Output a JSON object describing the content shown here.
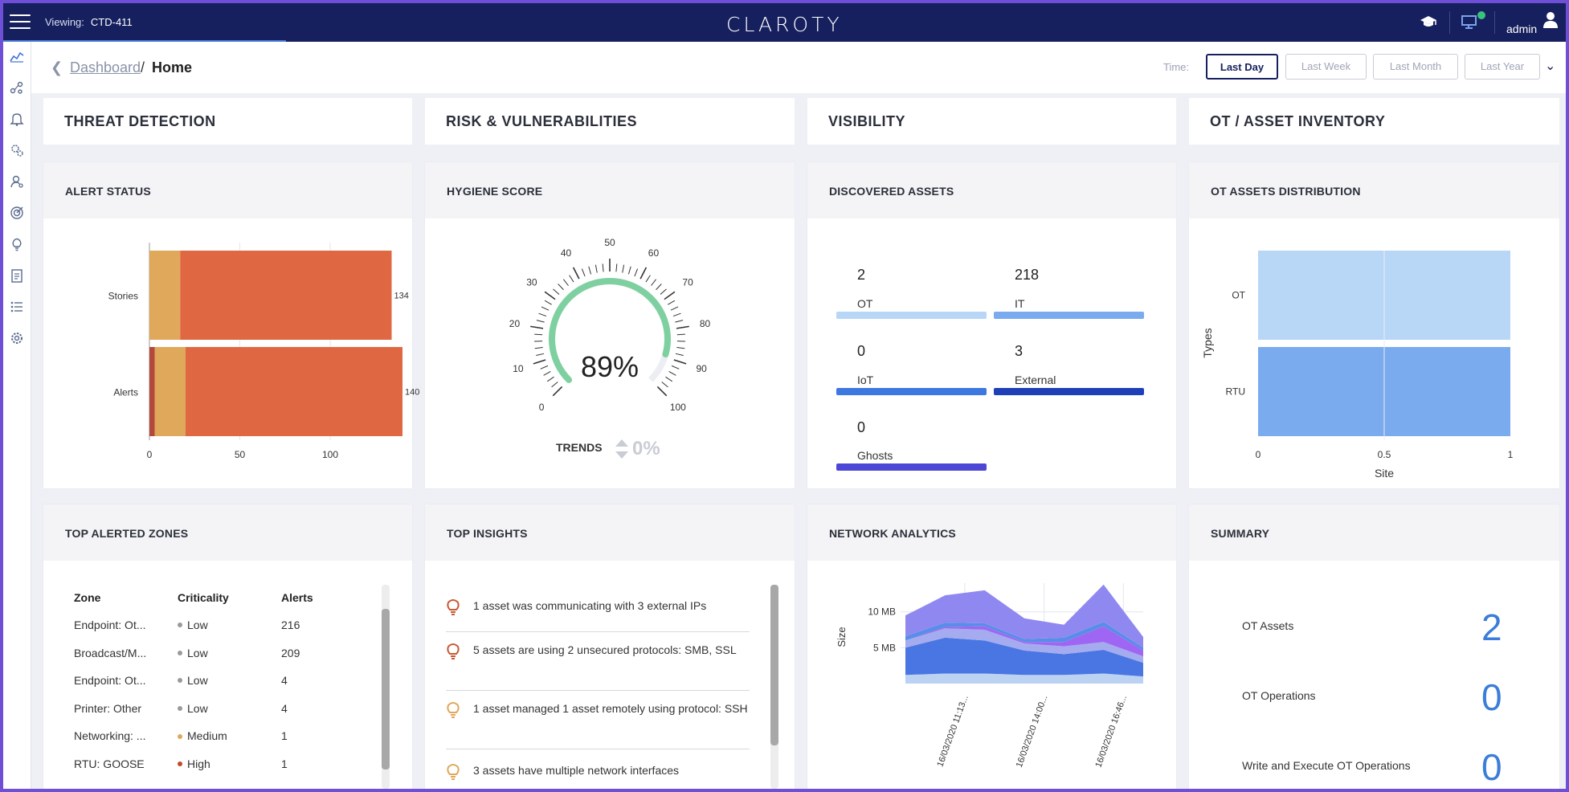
{
  "topbar": {
    "viewing_label": "Viewing:",
    "viewing_value": "CTD-411",
    "logo": "CLAROTY",
    "user": "admin"
  },
  "breadcrumb": {
    "parent": "Dashboard",
    "separator": "/",
    "current": "Home"
  },
  "time": {
    "label": "Time:",
    "options": [
      "Last Day",
      "Last Week",
      "Last Month",
      "Last Year"
    ],
    "selected": "Last Day"
  },
  "sections": [
    "THREAT DETECTION",
    "RISK & VULNERABILITIES",
    "VISIBILITY",
    "OT / ASSET INVENTORY"
  ],
  "alert_status": {
    "title": "ALERT STATUS",
    "chart_data": {
      "type": "bar",
      "orientation": "horizontal",
      "stacked": true,
      "categories": [
        "Stories",
        "Alerts"
      ],
      "series": [
        {
          "name": "segment-1",
          "color": "#b3493a",
          "values": [
            0,
            3
          ]
        },
        {
          "name": "segment-2",
          "color": "#e0a85a",
          "values": [
            17,
            17
          ]
        },
        {
          "name": "segment-3",
          "color": "#df6843",
          "values": [
            117,
            120
          ]
        }
      ],
      "totals": [
        134,
        140
      ],
      "xlim": [
        0,
        140
      ],
      "xticks": [
        0,
        50,
        100
      ]
    }
  },
  "hygiene": {
    "title": "HYGIENE SCORE",
    "value": 89,
    "value_label": "89%",
    "ticks": [
      "0",
      "10",
      "20",
      "30",
      "40",
      "50",
      "60",
      "70",
      "80",
      "90",
      "100"
    ],
    "trends_label": "TRENDS",
    "trend_value": "0%",
    "arc_color": "#7fd0a1"
  },
  "discovered": {
    "title": "DISCOVERED ASSETS",
    "items": [
      {
        "count": "2",
        "label": "OT",
        "color": "#b8d6f6"
      },
      {
        "count": "218",
        "label": "IT",
        "color": "#7aabee"
      },
      {
        "count": "0",
        "label": "IoT",
        "color": "#3d78e0"
      },
      {
        "count": "3",
        "label": "External",
        "color": "#1f3fb9"
      },
      {
        "count": "0",
        "label": "Ghosts",
        "color": "#4d47d8"
      }
    ]
  },
  "ot_dist": {
    "title": "OT ASSETS DISTRIBUTION",
    "chart_data": {
      "type": "bar",
      "orientation": "horizontal",
      "categories": [
        "OT",
        "RTU"
      ],
      "values": [
        1,
        1
      ],
      "colors": [
        "#b8d6f6",
        "#7aabee"
      ],
      "xlabel": "Site",
      "ylabel": "Types",
      "xlim": [
        0,
        1
      ],
      "xticks": [
        "0",
        "0.5",
        "1"
      ]
    }
  },
  "zones": {
    "title": "TOP ALERTED ZONES",
    "columns": [
      "Zone",
      "Criticality",
      "Alerts"
    ],
    "rows": [
      {
        "zone": "Endpoint: Ot...",
        "crit": "Low",
        "alerts": "216",
        "dot": "#9a9a9a"
      },
      {
        "zone": "Broadcast/M...",
        "crit": "Low",
        "alerts": "209",
        "dot": "#9a9a9a"
      },
      {
        "zone": "Endpoint: Ot...",
        "crit": "Low",
        "alerts": "4",
        "dot": "#9a9a9a"
      },
      {
        "zone": "Printer: Other",
        "crit": "Low",
        "alerts": "4",
        "dot": "#9a9a9a"
      },
      {
        "zone": "Networking: ...",
        "crit": "Medium",
        "alerts": "1",
        "dot": "#e0a85a"
      },
      {
        "zone": "RTU: GOOSE",
        "crit": "High",
        "alerts": "1",
        "dot": "#c24a2c"
      }
    ]
  },
  "insights": {
    "title": "TOP INSIGHTS",
    "items": [
      {
        "text": "1 asset was communicating with 3 external IPs",
        "color": "#c75a36"
      },
      {
        "text": "5 assets are using 2 unsecured protocols: SMB, SSL",
        "color": "#c75a36"
      },
      {
        "text": "1 asset managed 1 asset remotely using protocol: SSH",
        "color": "#e0a85a"
      },
      {
        "text": "3 assets have multiple network interfaces",
        "color": "#e0a85a"
      }
    ]
  },
  "network": {
    "title": "NETWORK ANALYTICS",
    "chart_data": {
      "type": "area",
      "stacked": true,
      "ylabel": "Size",
      "yticks": [
        "5 MB",
        "10 MB"
      ],
      "ylim": [
        0,
        14
      ],
      "x_labels": [
        "16/03/2020 11:13...",
        "16/03/2020 14:00...",
        "16/03/2020 16:46..."
      ],
      "x": [
        0,
        1,
        2,
        3,
        4,
        5,
        6
      ],
      "series": [
        {
          "name": "s1",
          "color": "#b8d0f2",
          "values": [
            1.2,
            1.4,
            1.4,
            1.2,
            1.2,
            1.4,
            1.0
          ]
        },
        {
          "name": "s2",
          "color": "#3f6fe0",
          "values": [
            3.8,
            5.0,
            4.6,
            3.4,
            2.9,
            3.3,
            1.9
          ]
        },
        {
          "name": "s3",
          "color": "#9fa7ee",
          "values": [
            1.0,
            1.3,
            1.5,
            1.0,
            1.1,
            1.1,
            0.9
          ]
        },
        {
          "name": "s4",
          "color": "#9a5ef2",
          "values": [
            0.0,
            0.2,
            0.5,
            0.2,
            0.6,
            2.2,
            0.8
          ]
        },
        {
          "name": "s5",
          "color": "#4f88e6",
          "values": [
            0.6,
            0.6,
            0.4,
            0.4,
            0.6,
            0.6,
            0.4
          ]
        },
        {
          "name": "s6",
          "color": "#8a82f0",
          "values": [
            2.9,
            3.8,
            4.6,
            2.9,
            1.8,
            5.2,
            1.5
          ]
        }
      ]
    }
  },
  "summary": {
    "title": "SUMMARY",
    "items": [
      {
        "label": "OT Assets",
        "value": "2"
      },
      {
        "label": "OT Operations",
        "value": "0"
      },
      {
        "label": "Write and Execute OT Operations",
        "value": "0"
      }
    ]
  }
}
